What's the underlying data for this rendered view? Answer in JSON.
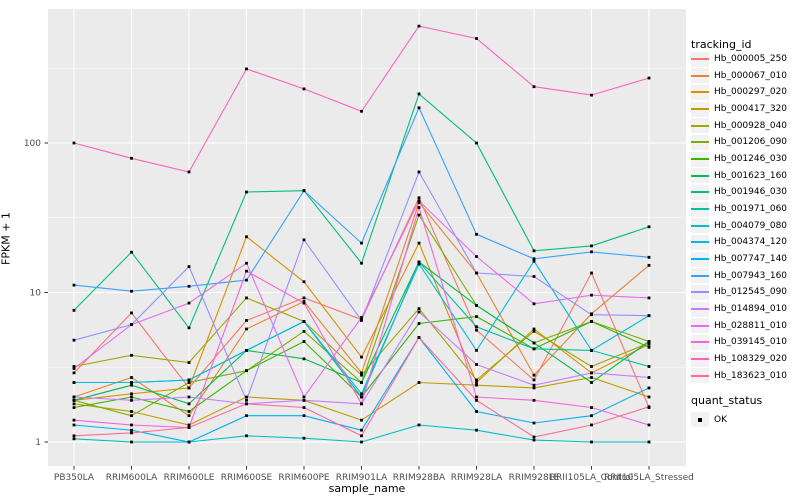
{
  "chart_data": {
    "type": "line",
    "title": "",
    "xlabel": "sample_name",
    "ylabel": "FPKM + 1",
    "yscale": "log10",
    "ylim": [
      0.7,
      790
    ],
    "yticks": [
      1,
      10,
      100
    ],
    "ytick_labels": [
      "1",
      "10",
      "100"
    ],
    "yticks_minor": [
      3.162,
      31.62,
      316.2
    ],
    "grid": true,
    "panel_bg": "#EBEBEB",
    "grid_color": "#FFFFFF",
    "tick_label_color": "#4D4D4D",
    "point_color": "#000000",
    "legend_position": "right",
    "legend_title": "tracking_id",
    "legend2": {
      "title": "quant_status",
      "items": [
        {
          "label": "OK"
        }
      ]
    },
    "x_categories": [
      "PB350LA",
      "RRIM600LA",
      "RRIM600LE",
      "RRIM600SE",
      "RRIM600PE",
      "RRIM901LA",
      "RRIM928BA",
      "RRIM928LA",
      "RRIM928LE",
      "RRII105LA_Control",
      "RRII105LA_Stressed"
    ],
    "series": [
      {
        "id": "Hb_000005_250",
        "color": "#F8766D",
        "values": [
          2.9,
          7.3,
          2.3,
          6.5,
          9.2,
          6.6,
          43,
          5.6,
          2.6,
          13.5,
          1.7
        ]
      },
      {
        "id": "Hb_000067_010",
        "color": "#EA8331",
        "values": [
          2.0,
          2.7,
          1.5,
          5.7,
          8.7,
          2.9,
          40,
          13.5,
          2.8,
          7.2,
          15.2
        ]
      },
      {
        "id": "Hb_000297_020",
        "color": "#D89000",
        "values": [
          1.9,
          2.1,
          2.3,
          23.6,
          11.8,
          3.7,
          21.4,
          2.5,
          5.7,
          2.9,
          4.5
        ]
      },
      {
        "id": "Hb_000417_320",
        "color": "#C09B00",
        "values": [
          1.8,
          1.6,
          1.3,
          2.0,
          1.9,
          1.4,
          2.5,
          2.4,
          2.3,
          2.7,
          2.0
        ]
      },
      {
        "id": "Hb_000928_040",
        "color": "#A3A500",
        "values": [
          3.2,
          3.8,
          3.4,
          9.2,
          6.4,
          2.8,
          7.8,
          2.6,
          5.5,
          3.2,
          4.6
        ]
      },
      {
        "id": "Hb_001206_090",
        "color": "#7CAE00",
        "values": [
          1.9,
          1.5,
          2.5,
          3.0,
          5.5,
          2.5,
          33,
          8.2,
          4.6,
          6.4,
          4.7
        ]
      },
      {
        "id": "Hb_001246_030",
        "color": "#39B600",
        "values": [
          1.7,
          2.0,
          1.6,
          3.0,
          4.7,
          2.0,
          6.2,
          6.9,
          4.2,
          6.4,
          4.3
        ]
      },
      {
        "id": "Hb_001623_160",
        "color": "#00BB4E",
        "values": [
          1.9,
          2.4,
          1.8,
          4.1,
          3.6,
          2.5,
          16,
          8.2,
          4.6,
          2.5,
          4.7
        ]
      },
      {
        "id": "Hb_001946_030",
        "color": "#00BF7D",
        "values": [
          7.6,
          18.6,
          5.8,
          47,
          48,
          15.7,
          213,
          100,
          19,
          20.5,
          27.5
        ]
      },
      {
        "id": "Hb_001971_060",
        "color": "#00C1A3",
        "values": [
          2.5,
          2.5,
          2.6,
          4.1,
          6.4,
          2.0,
          16,
          5.9,
          4.2,
          4.1,
          3.2
        ]
      },
      {
        "id": "Hb_004079_080",
        "color": "#00BFC4",
        "values": [
          1.05,
          1.0,
          1.0,
          1.1,
          1.06,
          1.0,
          1.3,
          1.2,
          1.03,
          1.0,
          1.0
        ]
      },
      {
        "id": "Hb_004374_120",
        "color": "#00BAE0",
        "values": [
          2.5,
          2.5,
          2.6,
          4.1,
          6.4,
          2.1,
          15.5,
          4.1,
          16.2,
          4.1,
          7.0
        ]
      },
      {
        "id": "Hb_007747_140",
        "color": "#00B0F6",
        "values": [
          1.3,
          1.2,
          1.0,
          1.5,
          1.5,
          1.2,
          5.0,
          1.6,
          1.34,
          1.5,
          2.3
        ]
      },
      {
        "id": "Hb_007943_160",
        "color": "#35A2FF",
        "values": [
          11.2,
          10.2,
          11.0,
          12.1,
          48,
          21.4,
          172,
          24.5,
          16.8,
          18.7,
          17.2
        ]
      },
      {
        "id": "Hb_012545_090",
        "color": "#9590FF",
        "values": [
          4.8,
          6.1,
          14.9,
          1.9,
          22.5,
          6.5,
          64,
          13.5,
          12.8,
          7.1,
          7.0
        ]
      },
      {
        "id": "Hb_014894_010",
        "color": "#C77CFF",
        "values": [
          2.0,
          1.9,
          2.0,
          1.8,
          1.9,
          1.8,
          7.4,
          3.3,
          2.4,
          2.9,
          2.7
        ]
      },
      {
        "id": "Hb_028811_010",
        "color": "#E76BF3",
        "values": [
          3.1,
          6.1,
          8.5,
          15.7,
          2.0,
          6.8,
          41,
          17.4,
          8.4,
          9.6,
          9.2
        ]
      },
      {
        "id": "Hb_039145_010",
        "color": "#FA62DB",
        "values": [
          1.4,
          1.3,
          1.25,
          13.9,
          8.5,
          1.8,
          37,
          2.0,
          1.9,
          1.7,
          1.3
        ]
      },
      {
        "id": "Hb_108329_020",
        "color": "#FF62BC",
        "values": [
          100,
          79,
          64,
          313,
          230,
          163,
          605,
          500,
          238,
          209,
          272
        ]
      },
      {
        "id": "Hb_183623_010",
        "color": "#FF6A98",
        "values": [
          1.1,
          1.15,
          1.25,
          1.8,
          1.7,
          1.1,
          5.0,
          1.9,
          1.08,
          1.3,
          1.72
        ]
      }
    ]
  }
}
